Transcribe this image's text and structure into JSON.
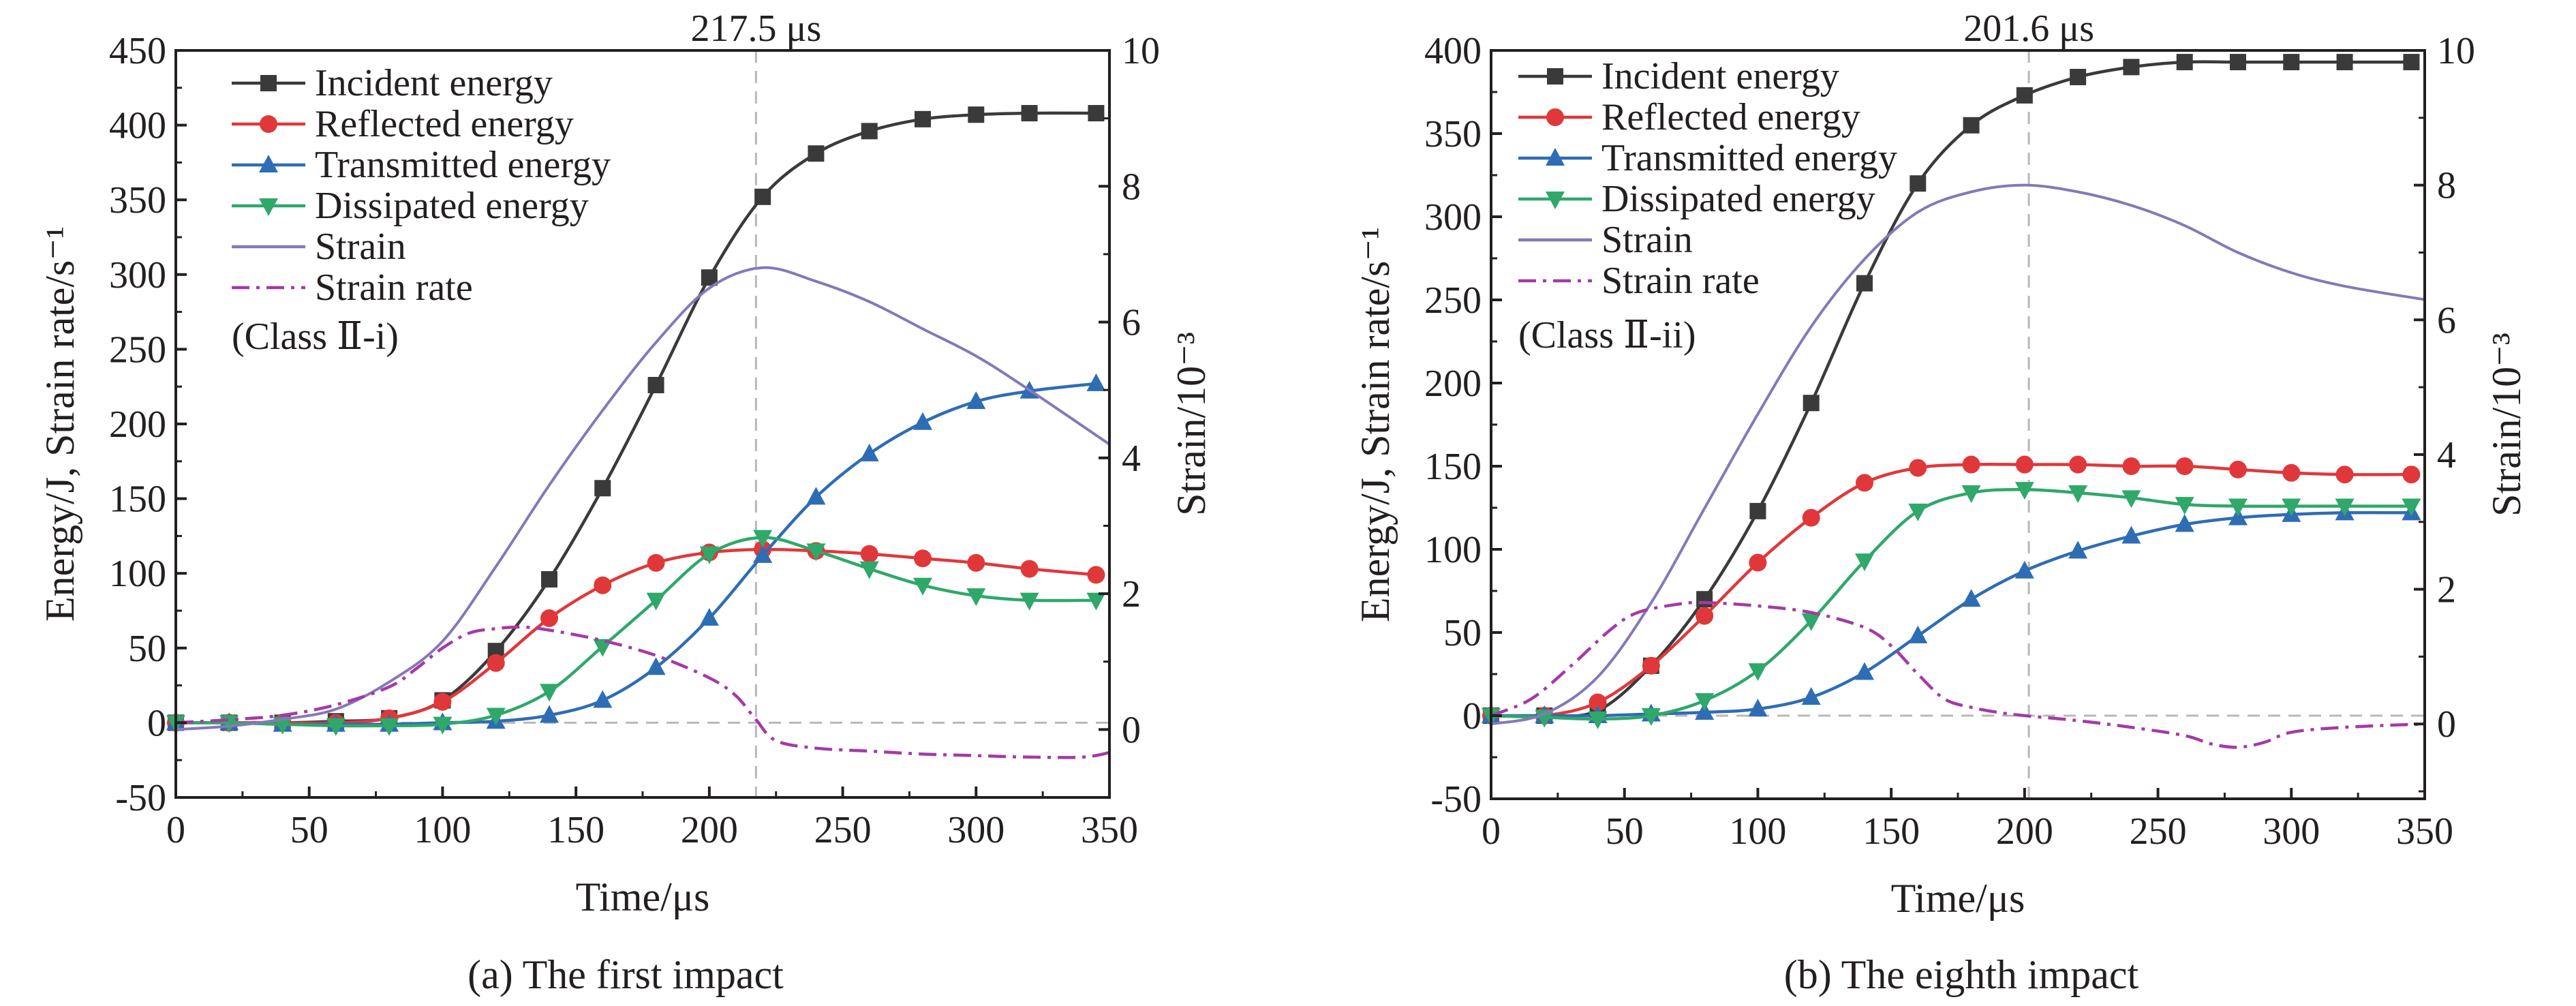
{
  "colors": {
    "incident": "#3a3a3a",
    "reflected": "#e0383a",
    "transmitted": "#2e6db4",
    "dissipated": "#2fa86a",
    "strain": "#8678b8",
    "strain_rate": "#a43aa6",
    "guide": "#b8b8b8",
    "axis": "#231f20"
  },
  "chart_data": [
    {
      "type": "line",
      "caption": "(a) The first impact",
      "class_label": "(Class Ⅱ-i)",
      "marker_label": "217.5 μs",
      "marker_x": 217.5,
      "xlabel": "Time/μs",
      "ylabel": "Energy/J, Strain rate/s⁻¹",
      "y2label": "Strain/10⁻³",
      "xlim": [
        0,
        350
      ],
      "ylim": [
        -50,
        450
      ],
      "y2lim": [
        -1,
        10
      ],
      "xticks": [
        0,
        50,
        100,
        150,
        200,
        250,
        300,
        350
      ],
      "yticks": [
        -50,
        0,
        50,
        100,
        150,
        200,
        250,
        300,
        350,
        400,
        450
      ],
      "y2ticks": [
        0,
        2,
        4,
        6,
        8,
        10
      ],
      "legend_position": "top-left",
      "series": [
        {
          "name": "Incident energy",
          "key": "incident",
          "marker": "square",
          "axis": "left",
          "x": [
            0,
            20,
            40,
            60,
            80,
            100,
            120,
            140,
            160,
            180,
            200,
            220,
            240,
            260,
            280,
            300,
            320,
            345
          ],
          "y": [
            0,
            0,
            0,
            1,
            3,
            15,
            48,
            96,
            157,
            226,
            298,
            352,
            381,
            396,
            404,
            407,
            408,
            408
          ]
        },
        {
          "name": "Reflected energy",
          "key": "reflected",
          "marker": "circle",
          "axis": "left",
          "x": [
            0,
            20,
            40,
            60,
            80,
            100,
            120,
            140,
            160,
            180,
            200,
            220,
            240,
            260,
            280,
            300,
            320,
            345
          ],
          "y": [
            0,
            0,
            0,
            0,
            3,
            14,
            40,
            70,
            92,
            107,
            114,
            116,
            115,
            113,
            110,
            107,
            103,
            99
          ]
        },
        {
          "name": "Transmitted energy",
          "key": "transmitted",
          "marker": "triangle-up",
          "axis": "left",
          "x": [
            0,
            20,
            40,
            60,
            80,
            100,
            120,
            140,
            160,
            180,
            200,
            220,
            240,
            260,
            280,
            300,
            320,
            345
          ],
          "y": [
            0,
            0,
            -1,
            -1,
            -1,
            0,
            1,
            5,
            15,
            37,
            70,
            112,
            151,
            180,
            201,
            215,
            222,
            227
          ]
        },
        {
          "name": "Dissipated energy",
          "key": "dissipated",
          "marker": "triangle-down",
          "axis": "left",
          "x": [
            0,
            20,
            40,
            60,
            80,
            100,
            120,
            140,
            160,
            180,
            200,
            220,
            240,
            260,
            280,
            300,
            320,
            345
          ],
          "y": [
            0,
            0,
            -1,
            -2,
            -2,
            -1,
            5,
            21,
            51,
            82,
            113,
            124,
            115,
            103,
            92,
            85,
            82,
            82
          ]
        },
        {
          "name": "Strain",
          "key": "strain",
          "marker": "none",
          "axis": "right",
          "x": [
            0,
            20,
            40,
            60,
            80,
            100,
            120,
            140,
            160,
            180,
            200,
            220,
            240,
            260,
            280,
            300,
            320,
            350
          ],
          "y": [
            0,
            0.05,
            0.15,
            0.3,
            0.7,
            1.3,
            2.4,
            3.6,
            4.7,
            5.7,
            6.5,
            6.8,
            6.6,
            6.3,
            5.9,
            5.5,
            5.0,
            4.2
          ]
        },
        {
          "name": "Strain rate",
          "key": "strain_rate",
          "marker": "none",
          "axis": "left",
          "dash": "dashdot",
          "x": [
            0,
            20,
            40,
            60,
            80,
            90,
            100,
            110,
            120,
            130,
            140,
            160,
            180,
            200,
            210,
            217.5,
            225,
            240,
            260,
            280,
            300,
            320,
            340,
            350
          ],
          "y": [
            0,
            2,
            5,
            12,
            24,
            36,
            50,
            60,
            63,
            64,
            62,
            55,
            45,
            30,
            18,
            2,
            -12,
            -17,
            -19,
            -21,
            -22,
            -23,
            -23,
            -20
          ]
        }
      ]
    },
    {
      "type": "line",
      "caption": "(b) The eighth impact",
      "class_label": "(Class Ⅱ-ii)",
      "marker_label": "201.6 μs",
      "marker_x": 201.6,
      "xlabel": "Time/μs",
      "ylabel": "Energy/J, Strain rate/s⁻¹",
      "y2label": "Strain/10⁻³",
      "xlim": [
        0,
        350
      ],
      "ylim": [
        -50,
        400
      ],
      "y2lim": [
        -1.111,
        10
      ],
      "xticks": [
        0,
        50,
        100,
        150,
        200,
        250,
        300,
        350
      ],
      "yticks": [
        -50,
        0,
        50,
        100,
        150,
        200,
        250,
        300,
        350,
        400
      ],
      "y2ticks": [
        0,
        2,
        4,
        6,
        8,
        10
      ],
      "legend_position": "top-left",
      "series": [
        {
          "name": "Incident energy",
          "key": "incident",
          "marker": "square",
          "axis": "left",
          "x": [
            0,
            20,
            40,
            60,
            80,
            100,
            120,
            140,
            160,
            180,
            200,
            220,
            240,
            260,
            280,
            300,
            320,
            345
          ],
          "y": [
            0,
            0,
            3,
            30,
            70,
            123,
            188,
            260,
            320,
            355,
            373,
            384,
            390,
            393,
            393,
            393,
            393,
            393
          ]
        },
        {
          "name": "Reflected energy",
          "key": "reflected",
          "marker": "circle",
          "axis": "left",
          "x": [
            0,
            20,
            40,
            60,
            80,
            100,
            120,
            140,
            160,
            180,
            200,
            220,
            240,
            260,
            280,
            300,
            320,
            345
          ],
          "y": [
            0,
            0,
            8,
            30,
            60,
            92,
            119,
            140,
            149,
            151,
            151,
            151,
            150,
            150,
            148,
            146,
            145,
            145
          ]
        },
        {
          "name": "Transmitted energy",
          "key": "transmitted",
          "marker": "triangle-up",
          "axis": "left",
          "x": [
            0,
            20,
            40,
            60,
            80,
            100,
            120,
            140,
            160,
            180,
            200,
            220,
            240,
            260,
            280,
            300,
            320,
            345
          ],
          "y": [
            0,
            0,
            0,
            1,
            2,
            4,
            11,
            26,
            48,
            70,
            87,
            99,
            108,
            115,
            119,
            121,
            122,
            122
          ]
        },
        {
          "name": "Dissipated energy",
          "key": "dissipated",
          "marker": "triangle-down",
          "axis": "left",
          "x": [
            0,
            20,
            40,
            60,
            80,
            100,
            120,
            140,
            160,
            180,
            200,
            220,
            240,
            260,
            280,
            300,
            320,
            345
          ],
          "y": [
            0,
            -1,
            -2,
            0,
            9,
            27,
            57,
            93,
            123,
            134,
            136,
            134,
            131,
            127,
            126,
            126,
            126,
            126
          ]
        },
        {
          "name": "Strain",
          "key": "strain",
          "marker": "none",
          "axis": "right",
          "x": [
            0,
            20,
            40,
            60,
            80,
            100,
            120,
            140,
            160,
            180,
            200,
            220,
            240,
            260,
            280,
            300,
            320,
            350
          ],
          "y": [
            0,
            0.15,
            0.7,
            1.8,
            3.2,
            4.6,
            5.9,
            6.9,
            7.6,
            7.9,
            8.0,
            7.9,
            7.7,
            7.4,
            7.0,
            6.7,
            6.5,
            6.3
          ]
        },
        {
          "name": "Strain rate",
          "key": "strain_rate",
          "marker": "none",
          "axis": "left",
          "dash": "dashdot",
          "x": [
            0,
            15,
            30,
            45,
            55,
            70,
            80,
            100,
            120,
            140,
            150,
            160,
            170,
            180,
            190,
            200,
            220,
            240,
            260,
            270,
            280,
            290,
            300,
            320,
            350
          ],
          "y": [
            0,
            10,
            30,
            52,
            62,
            67,
            68,
            66,
            62,
            53,
            42,
            25,
            10,
            5,
            2,
            0,
            -3,
            -7,
            -12,
            -17,
            -19,
            -16,
            -10,
            -7,
            -5
          ]
        }
      ]
    }
  ]
}
